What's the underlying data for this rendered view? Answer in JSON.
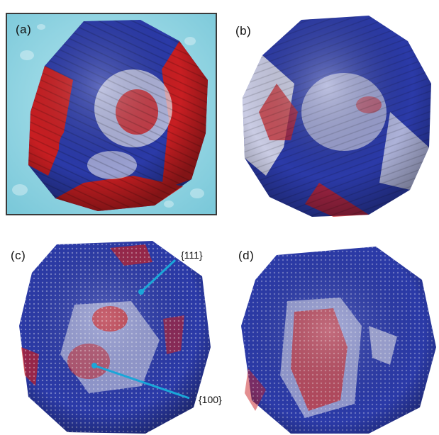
{
  "panels": {
    "a": {
      "label": "(a)"
    },
    "b": {
      "label": "(b)"
    },
    "c": {
      "label": "(c)",
      "facet_labels": [
        "{111}",
        "{100}"
      ]
    },
    "d": {
      "label": "(d)"
    }
  },
  "colors": {
    "water_background": "#8fd3e0",
    "water_border": "#3a3a3a",
    "surface_blue": "#2b3aa8",
    "surface_red": "#c81e22",
    "surface_white": "#e6e6ee",
    "pointer_line": "#1aa6d8"
  }
}
